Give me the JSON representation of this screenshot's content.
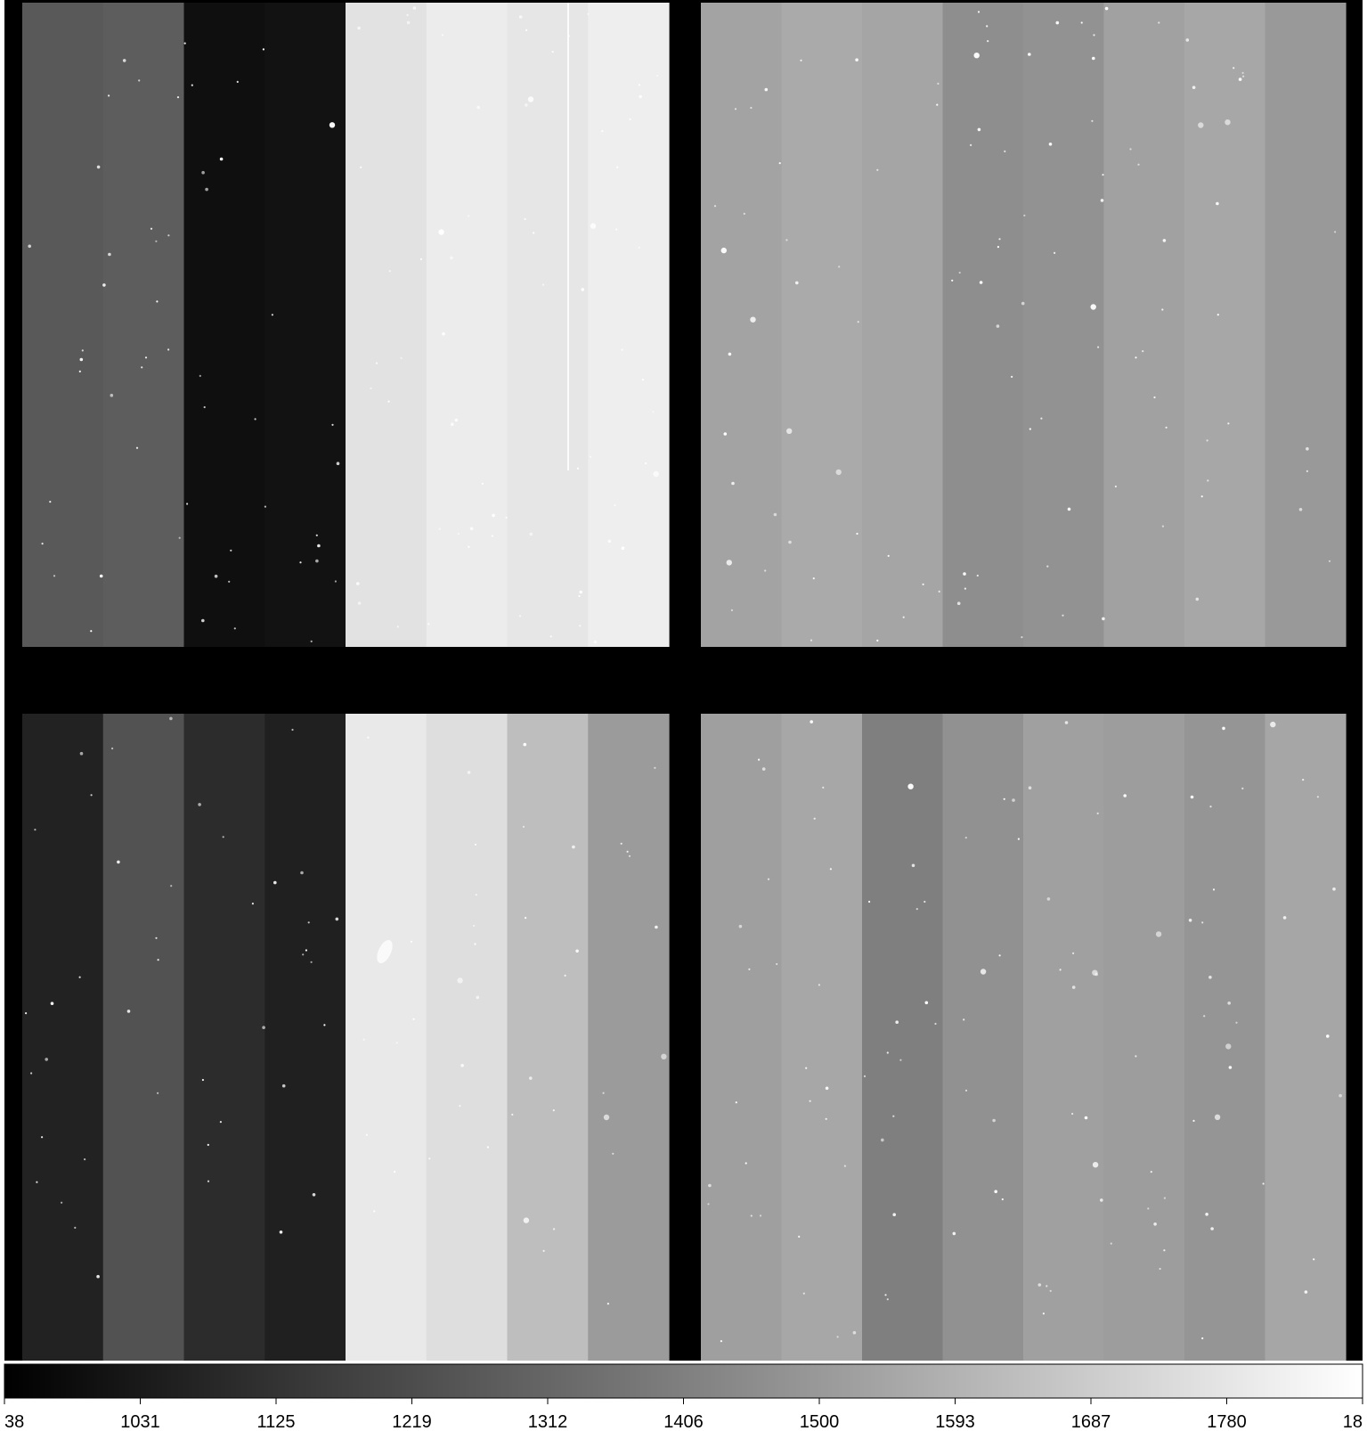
{
  "mosaic": {
    "quadrants": [
      {
        "name": "top-left",
        "strip_colors": [
          "#595959",
          "#5d5d5d",
          "#0f0f0f",
          "#121212",
          "#e2e2e2",
          "#ececec",
          "#e6e6e6",
          "#eeeeee"
        ]
      },
      {
        "name": "top-right",
        "strip_colors": [
          "#a3a3a3",
          "#aaaaaa",
          "#a5a5a5",
          "#8e8e8e",
          "#929292",
          "#a1a1a1",
          "#a7a7a7",
          "#999999"
        ]
      },
      {
        "name": "bottom-left",
        "strip_colors": [
          "#222222",
          "#525252",
          "#2c2c2c",
          "#202020",
          "#e9e9e9",
          "#dedede",
          "#bebebe",
          "#9b9b9b"
        ]
      },
      {
        "name": "bottom-right",
        "strip_colors": [
          "#9f9f9f",
          "#a7a7a7",
          "#7f7f7f",
          "#919191",
          "#a0a0a0",
          "#9d9d9d",
          "#959595",
          "#a6a6a6"
        ]
      }
    ],
    "gap_color": "#000000",
    "star_color": "#ffffff"
  },
  "colorbar": {
    "gradient": [
      "#000000",
      "#ffffff"
    ],
    "tick_labels": [
      "38",
      "1031",
      "1125",
      "1219",
      "1312",
      "1406",
      "1500",
      "1593",
      "1687",
      "1780",
      "18"
    ]
  }
}
